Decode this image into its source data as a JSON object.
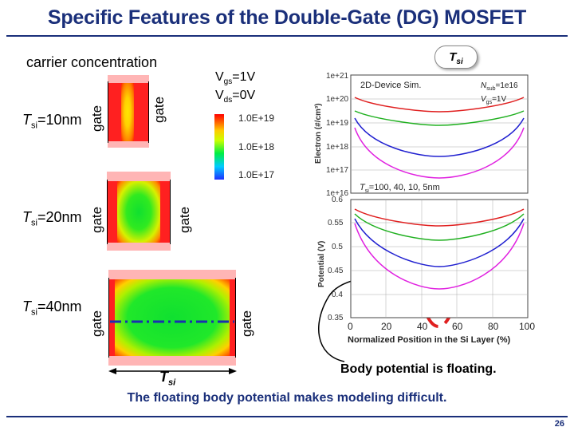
{
  "title": "Specific Features of the Double-Gate (DG) MOSFET",
  "page_number": "26",
  "carrier_concentration_label": "carrier concentration",
  "gate_label": "gate",
  "tsi_symbol": "T",
  "tsi_sub": "si",
  "panels": [
    {
      "label_value": "=10nm"
    },
    {
      "label_value": "=20nm"
    },
    {
      "label_value": "=40nm"
    }
  ],
  "bias": {
    "vgs_V": "V",
    "vgs_sub": "gs",
    "vgs_value": "=1V",
    "vds_V": "V",
    "vds_sub": "ds",
    "vds_value": "=0V"
  },
  "colorbar": {
    "labels": [
      "1.0E+19",
      "1.0E+18",
      "1.0E+17"
    ]
  },
  "callout": {
    "T": "T",
    "sub": "si"
  },
  "electron_plot": {
    "title_text": "2D-Device Sim.",
    "nsub_text": "N",
    "nsub_sub": "sub",
    "nsub_value": "=1e16",
    "vgs_text": "V",
    "vgs_sub": "gs",
    "vgs_value": "=1V",
    "ylabel": "Electron (#/cm³)",
    "yticks": [
      "1e+21",
      "1e+20",
      "1e+19",
      "1e+18",
      "1e+17",
      "1e+16"
    ],
    "tsi_legend": "T",
    "tsi_legend_sub": "si",
    "tsi_legend_value": "=100, 40, 10, 5nm"
  },
  "potential_plot": {
    "ylabel": "Potential (V)",
    "yticks": [
      "0.6",
      "0.55",
      "0.5",
      "0.45",
      "0.4",
      "0.35"
    ],
    "xticks": [
      "0",
      "20",
      "40",
      "60",
      "80",
      "100"
    ],
    "xlabel": "Normalized Position in the Si Layer (%)"
  },
  "bottom_tsi": {
    "T": "T",
    "sub": "si"
  },
  "body_floating_text": "Body potential is floating.",
  "modeling_text": "The floating body potential makes modeling difficult.",
  "colors": {
    "title": "#1a2f7a",
    "curves": [
      "#e02020",
      "#20b020",
      "#2020d0",
      "#e020e0"
    ],
    "dashed_ellipse": "#e02020",
    "centerline": "#1a2fb0"
  }
}
